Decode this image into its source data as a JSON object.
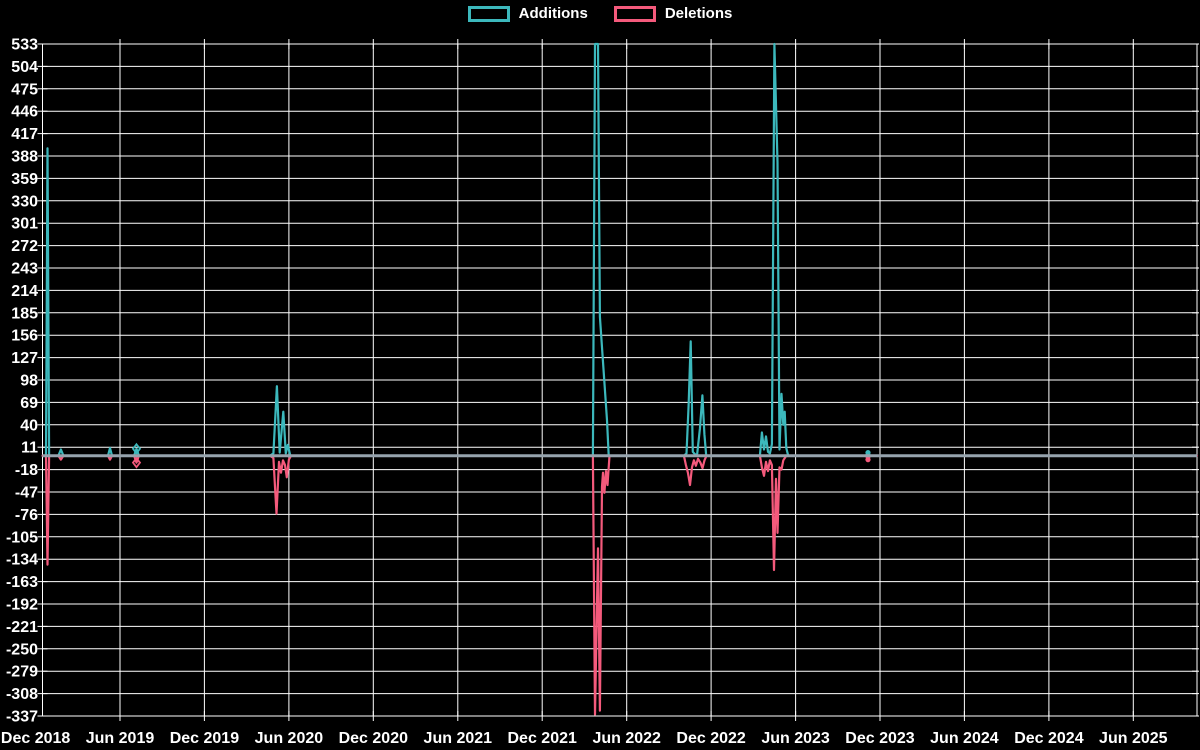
{
  "page": {
    "background": "#000000",
    "text_color": "#ffffff"
  },
  "legend": {
    "items": [
      {
        "label": "Additions",
        "color": "#3cb8bc"
      },
      {
        "label": "Deletions",
        "color": "#f45a7c"
      }
    ]
  },
  "chart_data": {
    "type": "line",
    "title": "",
    "xlabel": "",
    "ylabel": "",
    "grid": true,
    "grid_color": "#ffffff",
    "zero_line_color": "#96a3ad",
    "x_unit": "months since Dec 2018 tick",
    "x_axis": {
      "tick_labels": [
        "Dec 2018",
        "Jun 2019",
        "Dec 2019",
        "Jun 2020",
        "Dec 2020",
        "Jun 2021",
        "Dec 2021",
        "Jun 2022",
        "Dec 2022",
        "Jun 2023",
        "Dec 2023",
        "Jun 2024",
        "Dec 2024",
        "Jun 2025"
      ],
      "tick_month_offsets": [
        0,
        6,
        12,
        18,
        24,
        30,
        36,
        42,
        48,
        54,
        60,
        66,
        72,
        78
      ]
    },
    "y_axis": {
      "tick_labels": [
        533,
        504,
        475,
        446,
        417,
        388,
        359,
        330,
        301,
        272,
        243,
        214,
        185,
        156,
        127,
        98,
        69,
        40,
        11,
        -18,
        -47,
        -76,
        -105,
        -134,
        -163,
        -192,
        -221,
        -250,
        -279,
        -308,
        -337
      ],
      "max": 533,
      "min": -337,
      "step": 29
    },
    "series": [
      {
        "name": "Additions",
        "color": "#3cb8bc",
        "points": [
          [
            0.5,
            0
          ],
          [
            0.74,
            0
          ],
          [
            0.85,
            398
          ],
          [
            0.96,
            0
          ],
          [
            1.62,
            0
          ],
          [
            1.8,
            8
          ],
          [
            1.98,
            0
          ],
          [
            5.15,
            0
          ],
          [
            5.29,
            10
          ],
          [
            5.43,
            0
          ],
          [
            7.0,
            0
          ],
          [
            7.17,
            9
          ],
          [
            7.34,
            0
          ],
          [
            16.66,
            0
          ],
          [
            16.9,
            3
          ],
          [
            17.15,
            90
          ],
          [
            17.35,
            4
          ],
          [
            17.6,
            57
          ],
          [
            17.78,
            3
          ],
          [
            17.92,
            14
          ],
          [
            18.1,
            0
          ],
          [
            39.46,
            0
          ],
          [
            39.6,
            0
          ],
          [
            39.75,
            533
          ],
          [
            39.96,
            533
          ],
          [
            40.1,
            180
          ],
          [
            40.6,
            46
          ],
          [
            40.72,
            0
          ],
          [
            46.07,
            0
          ],
          [
            46.25,
            3
          ],
          [
            46.4,
            65
          ],
          [
            46.55,
            148
          ],
          [
            46.7,
            5
          ],
          [
            46.85,
            2
          ],
          [
            47.0,
            0
          ],
          [
            47.2,
            35
          ],
          [
            47.38,
            78
          ],
          [
            47.52,
            28
          ],
          [
            47.65,
            0
          ],
          [
            51.47,
            0
          ],
          [
            51.61,
            30
          ],
          [
            51.76,
            8
          ],
          [
            51.9,
            25
          ],
          [
            52.04,
            5
          ],
          [
            52.18,
            3
          ],
          [
            52.32,
            15
          ],
          [
            52.5,
            533
          ],
          [
            52.72,
            380
          ],
          [
            52.86,
            8
          ],
          [
            53.0,
            80
          ],
          [
            53.13,
            40
          ],
          [
            53.23,
            57
          ],
          [
            53.34,
            10
          ],
          [
            53.48,
            0
          ],
          [
            59.0,
            0
          ],
          [
            59.15,
            4
          ],
          [
            59.3,
            0
          ],
          [
            82.5,
            0
          ]
        ]
      },
      {
        "name": "Deletions",
        "color": "#f45a7c",
        "points": [
          [
            0.5,
            0
          ],
          [
            0.74,
            0
          ],
          [
            0.85,
            -141
          ],
          [
            0.96,
            0
          ],
          [
            1.62,
            0
          ],
          [
            1.8,
            -5
          ],
          [
            1.98,
            0
          ],
          [
            5.15,
            0
          ],
          [
            5.29,
            -5
          ],
          [
            5.43,
            0
          ],
          [
            7.0,
            0
          ],
          [
            7.17,
            -9
          ],
          [
            7.34,
            0
          ],
          [
            16.66,
            0
          ],
          [
            16.9,
            -3
          ],
          [
            17.12,
            -75
          ],
          [
            17.3,
            -8
          ],
          [
            17.44,
            -22
          ],
          [
            17.58,
            -6
          ],
          [
            17.72,
            -12
          ],
          [
            17.85,
            -28
          ],
          [
            18.0,
            -5
          ],
          [
            18.15,
            0
          ],
          [
            39.46,
            0
          ],
          [
            39.6,
            0
          ],
          [
            39.75,
            -335
          ],
          [
            39.96,
            -120
          ],
          [
            40.1,
            -330
          ],
          [
            40.25,
            -40
          ],
          [
            40.32,
            -22
          ],
          [
            40.42,
            -48
          ],
          [
            40.53,
            -20
          ],
          [
            40.64,
            -38
          ],
          [
            40.78,
            0
          ],
          [
            46.07,
            0
          ],
          [
            46.21,
            -12
          ],
          [
            46.35,
            -22
          ],
          [
            46.5,
            -38
          ],
          [
            46.64,
            -15
          ],
          [
            46.78,
            -6
          ],
          [
            46.92,
            -13
          ],
          [
            47.07,
            -4
          ],
          [
            47.24,
            -9
          ],
          [
            47.39,
            -16
          ],
          [
            47.53,
            -6
          ],
          [
            47.67,
            0
          ],
          [
            51.47,
            0
          ],
          [
            51.61,
            -15
          ],
          [
            51.76,
            -26
          ],
          [
            51.9,
            -8
          ],
          [
            52.04,
            -20
          ],
          [
            52.18,
            -6
          ],
          [
            52.32,
            -12
          ],
          [
            52.47,
            -148
          ],
          [
            52.61,
            -30
          ],
          [
            52.72,
            -100
          ],
          [
            52.86,
            -15
          ],
          [
            53.0,
            -18
          ],
          [
            53.13,
            -6
          ],
          [
            53.34,
            0
          ],
          [
            59.0,
            0
          ],
          [
            59.15,
            -5
          ],
          [
            59.3,
            0
          ],
          [
            82.5,
            0
          ]
        ]
      }
    ],
    "markers": [
      {
        "series": 0,
        "t": 7.17,
        "v": 9,
        "shape": "diamond-open"
      },
      {
        "series": 1,
        "t": 7.17,
        "v": -9,
        "shape": "diamond-open"
      },
      {
        "series": 0,
        "t": 59.15,
        "v": 4,
        "shape": "dot"
      },
      {
        "series": 1,
        "t": 59.15,
        "v": -5,
        "shape": "dot"
      }
    ]
  }
}
